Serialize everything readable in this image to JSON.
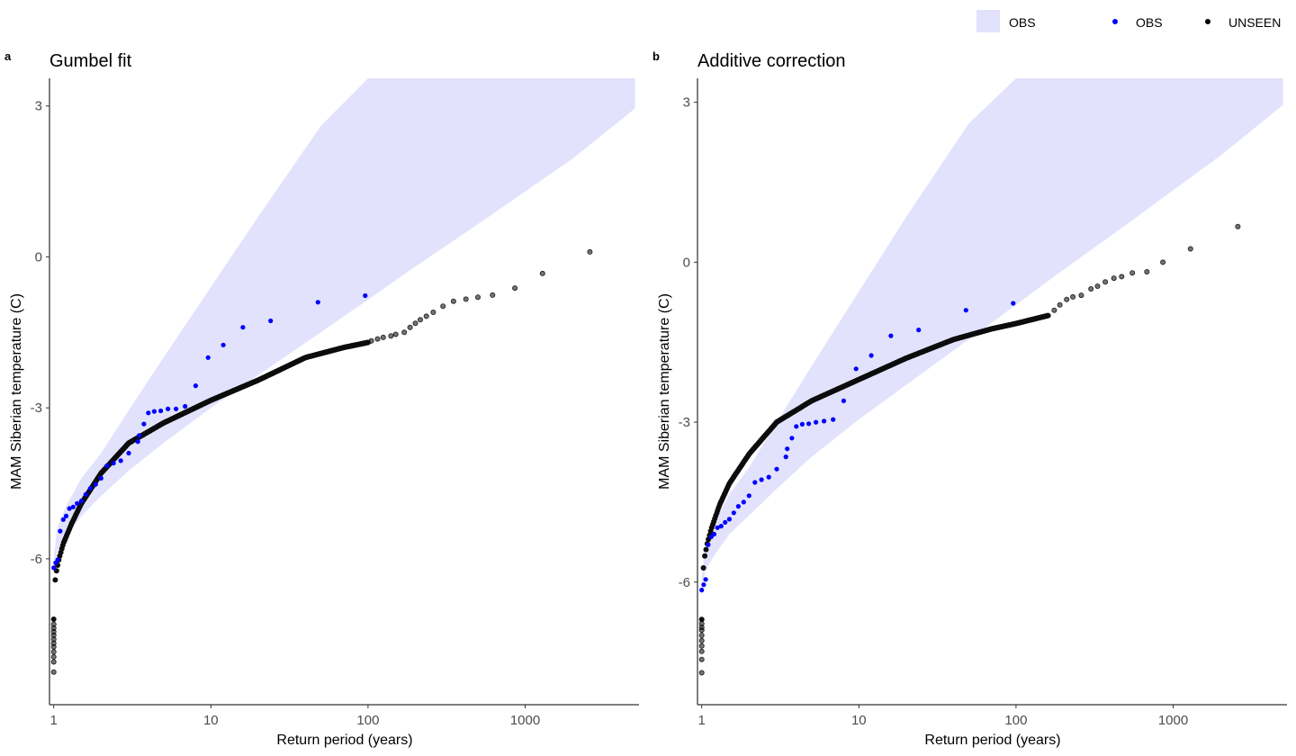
{
  "legend": {
    "items": [
      {
        "label": "OBS",
        "kind": "ribbon",
        "color": "#e2e2fd"
      },
      {
        "label": "OBS",
        "kind": "point",
        "color": "#0000ff"
      },
      {
        "label": "UNSEEN",
        "kind": "point",
        "color": "#000000"
      }
    ]
  },
  "chart_data": [
    {
      "tag": "a",
      "title": "Gumbel fit",
      "type": "scatter",
      "xlabel": "Return period (years)",
      "ylabel": "MAM Siberian temperature (C)",
      "xscale": "log10",
      "xlim": [
        0.94,
        5300
      ],
      "ylim": [
        -8.9,
        3.55
      ],
      "xticks": [
        {
          "value": 1,
          "label": "1"
        },
        {
          "value": 10,
          "label": "10"
        },
        {
          "value": 100,
          "label": "100"
        },
        {
          "value": 1000,
          "label": "1000"
        }
      ],
      "yticks": [
        {
          "value": 3,
          "label": "3"
        },
        {
          "value": 0,
          "label": "0"
        },
        {
          "value": -3,
          "label": "-3"
        },
        {
          "value": -6,
          "label": "-6"
        }
      ],
      "ribbon": {
        "name": "OBS",
        "color": "#e2e2fd",
        "x": [
          1.0,
          1.05,
          1.2,
          1.5,
          2,
          3,
          5,
          10,
          20,
          50,
          100,
          178,
          500,
          1000,
          2000,
          5000
        ],
        "lower": [
          -6.3,
          -5.85,
          -5.55,
          -5.15,
          -4.75,
          -4.25,
          -3.7,
          -3.0,
          -2.35,
          -1.5,
          -0.85,
          -0.3,
          0.65,
          1.3,
          1.95,
          2.95
        ],
        "upper": [
          -6.0,
          -5.4,
          -4.95,
          -4.4,
          -3.9,
          -3.05,
          -2.0,
          -0.6,
          0.8,
          2.6,
          3.55,
          3.55,
          3.55,
          3.55,
          3.55,
          3.55
        ]
      },
      "series": [
        {
          "name": "OBS",
          "color": "#0000ff",
          "points": [
            [
              1.0,
              -6.18
            ],
            [
              1.03,
              -6.08
            ],
            [
              1.06,
              -6.02
            ],
            [
              1.1,
              -5.45
            ],
            [
              1.15,
              -5.22
            ],
            [
              1.2,
              -5.15
            ],
            [
              1.26,
              -5.0
            ],
            [
              1.33,
              -4.97
            ],
            [
              1.41,
              -4.9
            ],
            [
              1.5,
              -4.85
            ],
            [
              1.6,
              -4.72
            ],
            [
              1.71,
              -4.6
            ],
            [
              1.85,
              -4.52
            ],
            [
              2.0,
              -4.4
            ],
            [
              2.18,
              -4.15
            ],
            [
              2.4,
              -4.1
            ],
            [
              2.67,
              -4.05
            ],
            [
              3.0,
              -3.9
            ],
            [
              3.43,
              -3.67
            ],
            [
              3.5,
              -3.55
            ],
            [
              3.75,
              -3.32
            ],
            [
              4.0,
              -3.1
            ],
            [
              4.36,
              -3.07
            ],
            [
              4.8,
              -3.06
            ],
            [
              5.33,
              -3.02
            ],
            [
              6.0,
              -3.02
            ],
            [
              6.86,
              -2.97
            ],
            [
              8.0,
              -2.56
            ],
            [
              9.6,
              -2.0
            ],
            [
              12,
              -1.75
            ],
            [
              16,
              -1.4
            ],
            [
              24,
              -1.27
            ],
            [
              48,
              -0.9
            ],
            [
              96,
              -0.77
            ]
          ]
        },
        {
          "name": "UNSEEN",
          "color": "#000000",
          "curve": {
            "x": [
              1.0,
              1.002,
              1.005,
              1.01,
              1.02,
              1.04,
              1.08,
              1.15,
              1.3,
              1.5,
              2,
              3,
              5,
              10,
              20,
              40,
              70,
              100
            ],
            "y": [
              -7.2,
              -6.9,
              -6.75,
              -6.6,
              -6.45,
              -6.25,
              -6.0,
              -5.7,
              -5.3,
              -4.9,
              -4.3,
              -3.7,
              -3.3,
              -2.85,
              -2.45,
              -2.0,
              -1.8,
              -1.7
            ]
          },
          "tail": [
            [
              1.0,
              -8.25
            ],
            [
              1.0,
              -8.05
            ],
            [
              1.0,
              -7.95
            ],
            [
              1.0,
              -7.85
            ],
            [
              1.0,
              -7.75
            ],
            [
              1.0,
              -7.68
            ],
            [
              1.0,
              -7.6
            ],
            [
              1.0,
              -7.52
            ],
            [
              1.0,
              -7.45
            ],
            [
              1.0,
              -7.38
            ],
            [
              1.0,
              -7.3
            ],
            [
              105,
              -1.67
            ],
            [
              115,
              -1.63
            ],
            [
              125,
              -1.6
            ],
            [
              140,
              -1.57
            ],
            [
              150,
              -1.54
            ],
            [
              170,
              -1.5
            ],
            [
              185,
              -1.4
            ],
            [
              200,
              -1.32
            ],
            [
              215,
              -1.25
            ],
            [
              235,
              -1.18
            ],
            [
              260,
              -1.1
            ],
            [
              300,
              -0.98
            ],
            [
              350,
              -0.88
            ],
            [
              420,
              -0.84
            ],
            [
              500,
              -0.8
            ],
            [
              620,
              -0.76
            ],
            [
              860,
              -0.62
            ],
            [
              1290,
              -0.33
            ],
            [
              2580,
              0.1
            ]
          ]
        }
      ]
    },
    {
      "tag": "b",
      "title": "Additive correction",
      "type": "scatter",
      "xlabel": "Return period (years)",
      "ylabel": "MAM Siberian temperature (C)",
      "xscale": "log10",
      "xlim": [
        0.94,
        5300
      ],
      "ylim": [
        -8.3,
        3.45
      ],
      "xticks": [
        {
          "value": 1,
          "label": "1"
        },
        {
          "value": 10,
          "label": "10"
        },
        {
          "value": 100,
          "label": "100"
        },
        {
          "value": 1000,
          "label": "1000"
        }
      ],
      "yticks": [
        {
          "value": 3,
          "label": "3"
        },
        {
          "value": 0,
          "label": "0"
        },
        {
          "value": -3,
          "label": "-3"
        },
        {
          "value": -6,
          "label": "-6"
        }
      ],
      "ribbon": {
        "name": "OBS",
        "color": "#e2e2fd",
        "x": [
          1.0,
          1.05,
          1.2,
          1.5,
          2,
          3,
          5,
          10,
          20,
          50,
          100,
          178,
          500,
          1000,
          2000,
          5000
        ],
        "lower": [
          -6.25,
          -5.8,
          -5.5,
          -5.1,
          -4.75,
          -4.25,
          -3.65,
          -2.95,
          -2.3,
          -1.45,
          -0.8,
          -0.25,
          0.7,
          1.35,
          2.0,
          2.95
        ],
        "upper": [
          -5.95,
          -5.35,
          -4.9,
          -4.35,
          -3.85,
          -3.0,
          -1.95,
          -0.55,
          0.85,
          2.6,
          3.45,
          3.45,
          3.45,
          3.45,
          3.45,
          3.45
        ]
      },
      "series": [
        {
          "name": "OBS",
          "color": "#0000ff",
          "points": [
            [
              1.0,
              -6.15
            ],
            [
              1.03,
              -6.05
            ],
            [
              1.06,
              -5.95
            ],
            [
              1.1,
              -5.3
            ],
            [
              1.15,
              -5.15
            ],
            [
              1.2,
              -5.1
            ],
            [
              1.26,
              -4.98
            ],
            [
              1.33,
              -4.95
            ],
            [
              1.41,
              -4.88
            ],
            [
              1.5,
              -4.82
            ],
            [
              1.6,
              -4.7
            ],
            [
              1.71,
              -4.58
            ],
            [
              1.85,
              -4.5
            ],
            [
              2.0,
              -4.38
            ],
            [
              2.18,
              -4.13
            ],
            [
              2.4,
              -4.08
            ],
            [
              2.67,
              -4.03
            ],
            [
              3.0,
              -3.88
            ],
            [
              3.43,
              -3.65
            ],
            [
              3.5,
              -3.5
            ],
            [
              3.75,
              -3.3
            ],
            [
              4.0,
              -3.08
            ],
            [
              4.36,
              -3.04
            ],
            [
              4.8,
              -3.03
            ],
            [
              5.33,
              -3.0
            ],
            [
              6.0,
              -2.98
            ],
            [
              6.86,
              -2.95
            ],
            [
              8.0,
              -2.6
            ],
            [
              9.6,
              -2.0
            ],
            [
              12,
              -1.75
            ],
            [
              16,
              -1.38
            ],
            [
              24,
              -1.27
            ],
            [
              48,
              -0.9
            ],
            [
              96,
              -0.77
            ]
          ]
        },
        {
          "name": "UNSEEN",
          "color": "#000000",
          "curve": {
            "x": [
              1.0,
              1.002,
              1.005,
              1.01,
              1.02,
              1.04,
              1.08,
              1.15,
              1.3,
              1.5,
              2,
              3,
              5,
              10,
              20,
              40,
              70,
              100,
              160
            ],
            "y": [
              -6.7,
              -6.4,
              -6.2,
              -6.0,
              -5.8,
              -5.55,
              -5.3,
              -5.0,
              -4.55,
              -4.15,
              -3.6,
              -3.0,
              -2.6,
              -2.2,
              -1.8,
              -1.45,
              -1.25,
              -1.15,
              -1.0
            ]
          },
          "tail": [
            [
              1.0,
              -7.7
            ],
            [
              1.0,
              -7.45
            ],
            [
              1.0,
              -7.3
            ],
            [
              1.0,
              -7.2
            ],
            [
              1.0,
              -7.1
            ],
            [
              1.0,
              -7.0
            ],
            [
              1.0,
              -6.9
            ],
            [
              1.0,
              -6.85
            ],
            [
              1.0,
              -6.78
            ],
            [
              175,
              -0.9
            ],
            [
              190,
              -0.8
            ],
            [
              210,
              -0.7
            ],
            [
              230,
              -0.65
            ],
            [
              260,
              -0.62
            ],
            [
              300,
              -0.5
            ],
            [
              330,
              -0.45
            ],
            [
              370,
              -0.37
            ],
            [
              420,
              -0.3
            ],
            [
              470,
              -0.27
            ],
            [
              550,
              -0.2
            ],
            [
              680,
              -0.18
            ],
            [
              860,
              0.0
            ],
            [
              1290,
              0.25
            ],
            [
              2580,
              0.67
            ]
          ]
        }
      ]
    }
  ]
}
